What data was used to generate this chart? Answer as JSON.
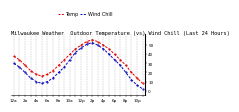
{
  "title": "Milwaukee Weather  Outdoor Temperature (vs) Wind Chill (Last 24 Hours)",
  "background_color": "#ffffff",
  "plot_bg_color": "#ffffff",
  "temp_color": "#dd0000",
  "windchill_color": "#0000bb",
  "grid_color": "#999999",
  "hours": [
    0,
    1,
    2,
    3,
    4,
    5,
    6,
    7,
    8,
    9,
    10,
    11,
    12,
    13,
    14,
    15,
    16,
    17,
    18,
    19,
    20,
    21,
    22,
    23
  ],
  "temp": [
    38,
    34,
    28,
    22,
    18,
    16,
    18,
    22,
    28,
    34,
    40,
    46,
    50,
    54,
    56,
    54,
    50,
    46,
    40,
    34,
    28,
    20,
    14,
    8
  ],
  "windchill": [
    30,
    26,
    20,
    14,
    10,
    8,
    10,
    14,
    20,
    26,
    34,
    42,
    47,
    51,
    53,
    50,
    46,
    40,
    34,
    28,
    20,
    12,
    6,
    2
  ],
  "ylim": [
    -5,
    62
  ],
  "ytick_values": [
    0,
    10,
    20,
    30,
    40,
    50
  ],
  "ytick_labels": [
    "0",
    "10",
    "20",
    "30",
    "40",
    "50"
  ],
  "title_fontsize": 3.8,
  "legend_fontsize": 3.5,
  "tick_fontsize": 3.0,
  "line_width": 0.7,
  "marker_size": 1.0
}
